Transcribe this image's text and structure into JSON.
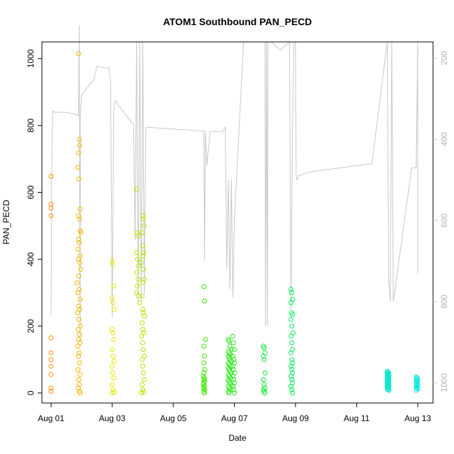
{
  "chart_data": {
    "type": "scatter",
    "title": "ATOM1 Southbound PAN_PECD",
    "xlabel": "Date",
    "ylabel": "PAN_PECD",
    "xlim": [
      -0.3,
      12.5
    ],
    "ylim": [
      -30,
      1050
    ],
    "y_ticks": [
      0,
      200,
      400,
      600,
      800,
      1000
    ],
    "x_ticks": [
      {
        "day": 0,
        "label": "Aug 01"
      },
      {
        "day": 2,
        "label": "Aug 03"
      },
      {
        "day": 4,
        "label": "Aug 05"
      },
      {
        "day": 6,
        "label": "Aug 07"
      },
      {
        "day": 8,
        "label": "Aug 09"
      },
      {
        "day": 10,
        "label": "Aug 11"
      },
      {
        "day": 12,
        "label": "Aug 13"
      }
    ],
    "secondary_axis": {
      "side": "right",
      "note": "pressure (inverted)",
      "range": [
        1050,
        160
      ],
      "ticks": [
        200,
        400,
        600,
        800,
        1000
      ],
      "color": "#c8c8c8"
    },
    "secondary_line": [
      [
        0.0,
        833
      ],
      [
        0.02,
        490
      ],
      [
        0.05,
        330
      ],
      [
        0.12,
        333
      ],
      [
        0.5,
        334
      ],
      [
        0.8,
        338
      ],
      [
        0.9,
        342
      ],
      [
        0.92,
        120
      ],
      [
        0.95,
        900
      ],
      [
        0.96,
        340
      ],
      [
        1.0,
        290
      ],
      [
        1.4,
        253
      ],
      [
        1.5,
        220
      ],
      [
        1.9,
        225
      ],
      [
        1.95,
        260
      ],
      [
        2.0,
        840
      ],
      [
        2.05,
        330
      ],
      [
        2.1,
        305
      ],
      [
        2.7,
        365
      ],
      [
        2.75,
        650
      ],
      [
        2.8,
        160
      ],
      [
        2.85,
        800
      ],
      [
        2.9,
        160
      ],
      [
        2.95,
        800
      ],
      [
        3.0,
        160
      ],
      [
        3.05,
        780
      ],
      [
        3.1,
        370
      ],
      [
        5.0,
        380
      ],
      [
        5.02,
        700
      ],
      [
        5.05,
        380
      ],
      [
        5.1,
        465
      ],
      [
        5.2,
        380
      ],
      [
        5.6,
        382
      ],
      [
        5.7,
        370
      ],
      [
        5.75,
        720
      ],
      [
        5.8,
        500
      ],
      [
        5.85,
        770
      ],
      [
        5.9,
        500
      ],
      [
        5.95,
        790
      ],
      [
        6.0,
        600
      ],
      [
        6.3,
        160
      ],
      [
        7.0,
        160
      ],
      [
        7.02,
        860
      ],
      [
        7.05,
        160
      ],
      [
        7.08,
        860
      ],
      [
        7.1,
        160
      ],
      [
        7.2,
        160
      ],
      [
        7.5,
        180
      ],
      [
        7.8,
        160
      ],
      [
        7.85,
        820
      ],
      [
        7.9,
        360
      ],
      [
        7.95,
        160
      ],
      [
        8.0,
        160
      ],
      [
        8.02,
        490
      ],
      [
        8.05,
        500
      ],
      [
        8.1,
        490
      ],
      [
        8.5,
        480
      ],
      [
        9.5,
        470
      ],
      [
        10.5,
        460
      ],
      [
        11.0,
        160
      ],
      [
        11.05,
        750
      ],
      [
        11.1,
        800
      ],
      [
        11.15,
        160
      ],
      [
        11.2,
        800
      ],
      [
        11.8,
        470
      ],
      [
        11.95,
        470
      ],
      [
        12.0,
        160
      ],
      [
        12.0,
        730
      ]
    ],
    "series": [
      {
        "name": "scatter",
        "points": [
          [
            0.0,
            648
          ],
          [
            0.0,
            565
          ],
          [
            0.0,
            553
          ],
          [
            0.0,
            530
          ],
          [
            0.0,
            165
          ],
          [
            0.0,
            120
          ],
          [
            0.0,
            100
          ],
          [
            0.0,
            80
          ],
          [
            0.0,
            55
          ],
          [
            0.0,
            15
          ],
          [
            0.0,
            5
          ],
          [
            0.9,
            1015
          ],
          [
            0.92,
            758
          ],
          [
            0.93,
            740
          ],
          [
            0.9,
            718
          ],
          [
            0.88,
            675
          ],
          [
            0.91,
            640
          ],
          [
            0.95,
            550
          ],
          [
            0.9,
            530
          ],
          [
            0.93,
            520
          ],
          [
            0.95,
            485
          ],
          [
            0.97,
            480
          ],
          [
            0.9,
            460
          ],
          [
            0.92,
            450
          ],
          [
            0.88,
            430
          ],
          [
            0.95,
            410
          ],
          [
            0.9,
            400
          ],
          [
            0.93,
            390
          ],
          [
            0.97,
            370
          ],
          [
            0.9,
            350
          ],
          [
            0.85,
            330
          ],
          [
            0.92,
            310
          ],
          [
            0.88,
            300
          ],
          [
            0.95,
            280
          ],
          [
            0.9,
            260
          ],
          [
            0.93,
            250
          ],
          [
            0.87,
            240
          ],
          [
            0.91,
            220
          ],
          [
            0.96,
            200
          ],
          [
            0.89,
            190
          ],
          [
            0.93,
            175
          ],
          [
            0.9,
            160
          ],
          [
            0.95,
            150
          ],
          [
            0.88,
            140
          ],
          [
            0.92,
            120
          ],
          [
            0.9,
            110
          ],
          [
            0.93,
            90
          ],
          [
            0.88,
            70
          ],
          [
            0.95,
            55
          ],
          [
            0.9,
            40
          ],
          [
            0.92,
            25
          ],
          [
            0.89,
            15
          ],
          [
            0.93,
            5
          ],
          [
            0.95,
            0
          ],
          [
            2.0,
            395
          ],
          [
            2.02,
            385
          ],
          [
            2.05,
            320
          ],
          [
            2.0,
            285
          ],
          [
            2.03,
            270
          ],
          [
            2.06,
            250
          ],
          [
            2.0,
            190
          ],
          [
            2.02,
            180
          ],
          [
            2.05,
            160
          ],
          [
            2.0,
            130
          ],
          [
            2.03,
            110
          ],
          [
            2.06,
            95
          ],
          [
            2.0,
            80
          ],
          [
            2.02,
            60
          ],
          [
            2.05,
            45
          ],
          [
            2.0,
            25
          ],
          [
            2.03,
            10
          ],
          [
            2.06,
            2
          ],
          [
            2.0,
            0
          ],
          [
            2.8,
            610
          ],
          [
            2.82,
            480
          ],
          [
            2.85,
            470
          ],
          [
            2.8,
            420
          ],
          [
            2.83,
            400
          ],
          [
            2.86,
            380
          ],
          [
            2.8,
            360
          ],
          [
            2.85,
            340
          ],
          [
            2.82,
            320
          ],
          [
            2.8,
            300
          ],
          [
            2.85,
            290
          ],
          [
            2.9,
            270
          ],
          [
            3.0,
            530
          ],
          [
            3.02,
            520
          ],
          [
            3.05,
            500
          ],
          [
            2.98,
            480
          ],
          [
            3.0,
            440
          ],
          [
            3.03,
            420
          ],
          [
            3.0,
            410
          ],
          [
            2.95,
            390
          ],
          [
            3.02,
            370
          ],
          [
            3.05,
            340
          ],
          [
            3.0,
            330
          ],
          [
            2.98,
            290
          ],
          [
            3.0,
            250
          ],
          [
            3.02,
            240
          ],
          [
            3.05,
            230
          ],
          [
            2.98,
            210
          ],
          [
            3.0,
            190
          ],
          [
            3.03,
            180
          ],
          [
            2.96,
            170
          ],
          [
            3.0,
            150
          ],
          [
            3.02,
            130
          ],
          [
            3.05,
            110
          ],
          [
            2.98,
            100
          ],
          [
            3.0,
            80
          ],
          [
            3.02,
            60
          ],
          [
            3.05,
            40
          ],
          [
            2.98,
            25
          ],
          [
            3.0,
            10
          ],
          [
            3.03,
            3
          ],
          [
            2.96,
            0
          ]
        ]
      },
      {
        "name": "scatter-green",
        "points": [
          [
            5.0,
            318
          ],
          [
            5.02,
            275
          ],
          [
            5.05,
            160
          ],
          [
            5.0,
            140
          ],
          [
            5.02,
            110
          ],
          [
            5.0,
            90
          ],
          [
            5.03,
            70
          ],
          [
            5.0,
            60
          ],
          [
            4.98,
            50
          ],
          [
            5.02,
            45
          ],
          [
            5.0,
            40
          ],
          [
            5.03,
            35
          ],
          [
            5.0,
            30
          ],
          [
            4.98,
            25
          ],
          [
            5.02,
            20
          ],
          [
            5.0,
            15
          ],
          [
            5.03,
            10
          ],
          [
            5.0,
            5
          ],
          [
            5.02,
            0
          ],
          [
            5.8,
            160
          ],
          [
            5.82,
            155
          ],
          [
            5.85,
            140
          ],
          [
            5.9,
            130
          ],
          [
            5.8,
            125
          ],
          [
            5.83,
            120
          ],
          [
            5.87,
            115
          ],
          [
            5.8,
            110
          ],
          [
            5.82,
            105
          ],
          [
            5.85,
            100
          ],
          [
            5.9,
            95
          ],
          [
            5.8,
            90
          ],
          [
            5.83,
            85
          ],
          [
            5.87,
            80
          ],
          [
            5.8,
            75
          ],
          [
            5.82,
            70
          ],
          [
            5.85,
            65
          ],
          [
            5.9,
            60
          ],
          [
            5.8,
            55
          ],
          [
            5.83,
            50
          ],
          [
            5.87,
            45
          ],
          [
            5.8,
            40
          ],
          [
            5.82,
            35
          ],
          [
            5.85,
            30
          ],
          [
            5.9,
            25
          ],
          [
            5.8,
            20
          ],
          [
            5.83,
            15
          ],
          [
            5.87,
            10
          ],
          [
            5.8,
            5
          ],
          [
            5.82,
            0
          ],
          [
            5.95,
            170
          ],
          [
            5.97,
            150
          ],
          [
            6.0,
            130
          ],
          [
            5.95,
            110
          ],
          [
            5.98,
            100
          ],
          [
            6.0,
            90
          ],
          [
            5.95,
            80
          ],
          [
            5.97,
            70
          ],
          [
            6.0,
            60
          ],
          [
            5.95,
            50
          ],
          [
            5.98,
            40
          ],
          [
            6.0,
            30
          ],
          [
            5.95,
            20
          ],
          [
            5.97,
            10
          ],
          [
            6.0,
            0
          ],
          [
            6.95,
            140
          ],
          [
            6.97,
            135
          ],
          [
            7.0,
            120
          ],
          [
            6.95,
            110
          ],
          [
            6.97,
            100
          ],
          [
            7.0,
            60
          ],
          [
            6.95,
            40
          ],
          [
            6.97,
            25
          ],
          [
            7.0,
            15
          ],
          [
            6.95,
            10
          ],
          [
            6.97,
            5
          ],
          [
            7.0,
            0
          ],
          [
            7.85,
            310
          ],
          [
            7.87,
            300
          ],
          [
            7.9,
            280
          ],
          [
            7.85,
            270
          ],
          [
            7.87,
            240
          ],
          [
            7.9,
            235
          ],
          [
            7.85,
            220
          ],
          [
            7.88,
            200
          ],
          [
            7.92,
            180
          ],
          [
            7.85,
            170
          ],
          [
            7.88,
            150
          ],
          [
            7.9,
            130
          ],
          [
            7.85,
            120
          ],
          [
            7.88,
            100
          ],
          [
            7.9,
            90
          ],
          [
            7.85,
            80
          ],
          [
            7.88,
            70
          ],
          [
            7.9,
            60
          ],
          [
            7.85,
            50
          ],
          [
            7.88,
            40
          ],
          [
            7.9,
            30
          ],
          [
            7.85,
            20
          ],
          [
            7.88,
            10
          ],
          [
            7.9,
            0
          ]
        ]
      },
      {
        "name": "scatter-teal",
        "points": [
          [
            11.0,
            65
          ],
          [
            11.02,
            62
          ],
          [
            11.05,
            60
          ],
          [
            11.0,
            58
          ],
          [
            11.03,
            55
          ],
          [
            11.06,
            52
          ],
          [
            11.0,
            50
          ],
          [
            11.02,
            48
          ],
          [
            11.05,
            45
          ],
          [
            11.0,
            42
          ],
          [
            11.03,
            40
          ],
          [
            11.06,
            38
          ],
          [
            11.0,
            35
          ],
          [
            11.02,
            32
          ],
          [
            11.05,
            30
          ],
          [
            11.0,
            28
          ],
          [
            11.03,
            25
          ],
          [
            11.06,
            22
          ],
          [
            11.0,
            20
          ],
          [
            11.02,
            18
          ],
          [
            11.05,
            15
          ],
          [
            11.0,
            12
          ],
          [
            11.03,
            10
          ],
          [
            11.06,
            8
          ],
          [
            11.95,
            48
          ],
          [
            11.97,
            45
          ],
          [
            12.0,
            42
          ],
          [
            11.95,
            38
          ],
          [
            11.97,
            35
          ],
          [
            12.0,
            32
          ],
          [
            11.95,
            28
          ],
          [
            11.97,
            25
          ],
          [
            12.0,
            22
          ],
          [
            11.95,
            18
          ],
          [
            11.97,
            15
          ],
          [
            12.0,
            12
          ],
          [
            11.95,
            8
          ]
        ]
      }
    ]
  }
}
